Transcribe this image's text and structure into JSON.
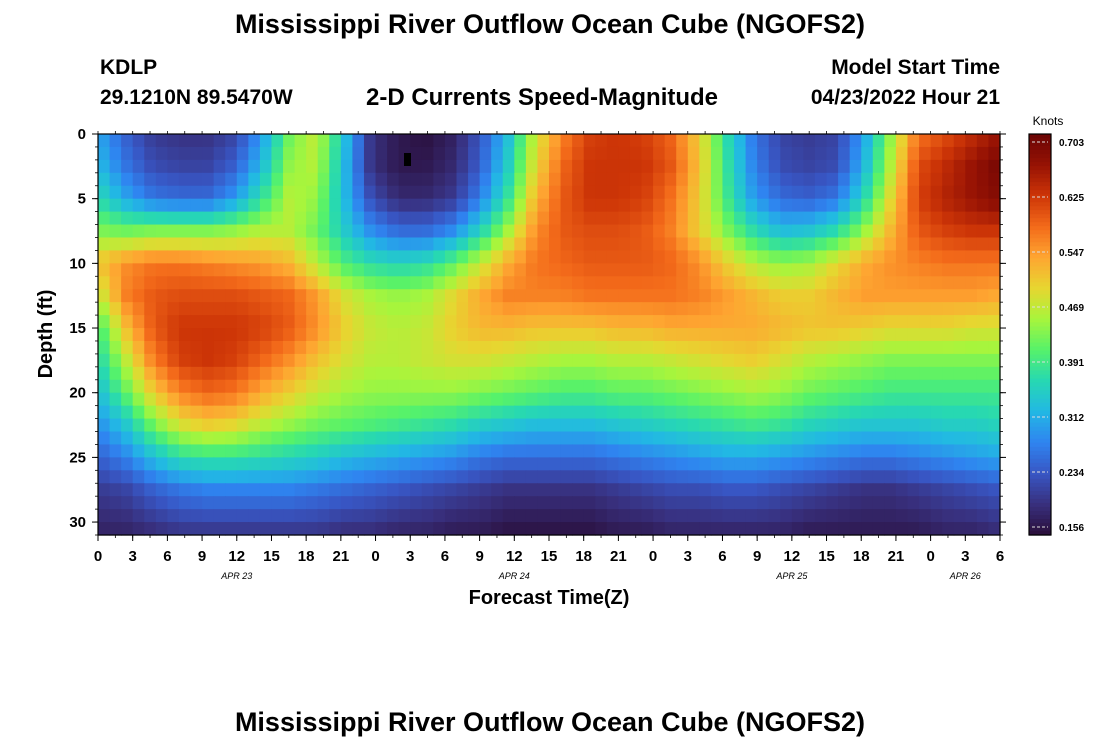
{
  "header": {
    "title": "Mississippi River Outflow Ocean Cube (NGOFS2)",
    "station": "KDLP",
    "coordinates": "29.1210N  89.5470W",
    "subtitle": "2-D Currents Speed-Magnitude",
    "start_label": "Model Start Time",
    "start_value": "04/23/2022 Hour 21"
  },
  "footer": {
    "title": "Mississippi River Outflow Ocean Cube (NGOFS2)"
  },
  "chart_data": {
    "type": "heatmap",
    "xlabel": "Forecast Time(Z)",
    "ylabel": "Depth (ft)",
    "x_range_hours": [
      0,
      78
    ],
    "x_tick_labels": [
      "0",
      "3",
      "6",
      "9",
      "12",
      "15",
      "18",
      "21",
      "0",
      "3",
      "6",
      "9",
      "12",
      "15",
      "18",
      "21",
      "0",
      "3",
      "6",
      "9",
      "12",
      "15",
      "18",
      "21",
      "0",
      "3",
      "6"
    ],
    "date_labels": [
      {
        "text": "APR 23",
        "hour": 12
      },
      {
        "text": "APR 24",
        "hour": 36
      },
      {
        "text": "APR 25",
        "hour": 60
      },
      {
        "text": "APR 26",
        "hour": 75
      }
    ],
    "ylim": [
      0,
      31
    ],
    "y_tick_labels": [
      "0",
      "5",
      "10",
      "15",
      "20",
      "25",
      "30"
    ],
    "colorbar": {
      "unit": "Knots",
      "tick_labels": [
        "0.703",
        "0.625",
        "0.547",
        "0.469",
        "0.391",
        "0.312",
        "0.234",
        "0.156"
      ],
      "min": 0.156,
      "max": 0.703
    },
    "colormap": [
      "#2a0e3a",
      "#38307e",
      "#3856c4",
      "#2f84f0",
      "#22b8e4",
      "#27d8b2",
      "#56f26a",
      "#a8f53c",
      "#e7d630",
      "#fea531",
      "#f36a1a",
      "#cd3507",
      "#961204",
      "#6a0404"
    ],
    "surface_max_hours": [
      21,
      45,
      70
    ],
    "mid_max_hours": [
      12,
      42,
      66
    ],
    "deep_max_hours": [
      9,
      33,
      58
    ],
    "values": [
      [
        0.31,
        0.25,
        0.21,
        0.2,
        0.2,
        0.22,
        0.3,
        0.42,
        0.47,
        0.34,
        0.2,
        0.17,
        0.16,
        0.18,
        0.24,
        0.33,
        0.47,
        0.56,
        0.61,
        0.62,
        0.61,
        0.58,
        0.5,
        0.37,
        0.27,
        0.22,
        0.21,
        0.22,
        0.3,
        0.44,
        0.57,
        0.6,
        0.63,
        0.66
      ],
      [
        0.33,
        0.27,
        0.23,
        0.22,
        0.22,
        0.25,
        0.33,
        0.44,
        0.46,
        0.33,
        0.2,
        0.17,
        0.17,
        0.19,
        0.25,
        0.35,
        0.49,
        0.58,
        0.62,
        0.62,
        0.62,
        0.59,
        0.51,
        0.38,
        0.28,
        0.23,
        0.22,
        0.23,
        0.32,
        0.46,
        0.6,
        0.63,
        0.66,
        0.69
      ],
      [
        0.37,
        0.31,
        0.27,
        0.26,
        0.26,
        0.3,
        0.38,
        0.46,
        0.44,
        0.33,
        0.23,
        0.19,
        0.19,
        0.21,
        0.28,
        0.38,
        0.52,
        0.59,
        0.62,
        0.62,
        0.61,
        0.57,
        0.5,
        0.39,
        0.3,
        0.26,
        0.25,
        0.27,
        0.36,
        0.49,
        0.61,
        0.64,
        0.66,
        0.68
      ],
      [
        0.43,
        0.42,
        0.43,
        0.43,
        0.43,
        0.44,
        0.46,
        0.46,
        0.42,
        0.35,
        0.29,
        0.26,
        0.26,
        0.29,
        0.36,
        0.45,
        0.55,
        0.59,
        0.6,
        0.6,
        0.59,
        0.56,
        0.5,
        0.43,
        0.37,
        0.33,
        0.34,
        0.37,
        0.44,
        0.52,
        0.59,
        0.61,
        0.62,
        0.62
      ],
      [
        0.51,
        0.55,
        0.57,
        0.57,
        0.56,
        0.55,
        0.54,
        0.52,
        0.46,
        0.4,
        0.37,
        0.36,
        0.37,
        0.41,
        0.47,
        0.53,
        0.57,
        0.58,
        0.59,
        0.59,
        0.59,
        0.58,
        0.55,
        0.5,
        0.46,
        0.44,
        0.45,
        0.49,
        0.53,
        0.55,
        0.56,
        0.57,
        0.57,
        0.57
      ],
      [
        0.46,
        0.56,
        0.59,
        0.6,
        0.6,
        0.6,
        0.59,
        0.58,
        0.54,
        0.48,
        0.45,
        0.44,
        0.45,
        0.49,
        0.53,
        0.56,
        0.56,
        0.56,
        0.57,
        0.57,
        0.57,
        0.57,
        0.56,
        0.54,
        0.52,
        0.5,
        0.5,
        0.52,
        0.54,
        0.54,
        0.54,
        0.54,
        0.54,
        0.53
      ],
      [
        0.39,
        0.51,
        0.59,
        0.62,
        0.62,
        0.62,
        0.61,
        0.59,
        0.55,
        0.5,
        0.47,
        0.46,
        0.47,
        0.5,
        0.52,
        0.52,
        0.51,
        0.51,
        0.51,
        0.52,
        0.52,
        0.53,
        0.53,
        0.53,
        0.53,
        0.52,
        0.51,
        0.51,
        0.5,
        0.49,
        0.49,
        0.49,
        0.48,
        0.48
      ],
      [
        0.36,
        0.46,
        0.56,
        0.61,
        0.62,
        0.61,
        0.58,
        0.55,
        0.51,
        0.48,
        0.46,
        0.46,
        0.47,
        0.48,
        0.48,
        0.47,
        0.46,
        0.45,
        0.45,
        0.46,
        0.46,
        0.47,
        0.48,
        0.49,
        0.5,
        0.48,
        0.46,
        0.45,
        0.44,
        0.43,
        0.43,
        0.43,
        0.43,
        0.43
      ],
      [
        0.33,
        0.41,
        0.5,
        0.56,
        0.58,
        0.57,
        0.53,
        0.5,
        0.47,
        0.45,
        0.44,
        0.44,
        0.44,
        0.44,
        0.43,
        0.42,
        0.41,
        0.4,
        0.4,
        0.41,
        0.41,
        0.42,
        0.43,
        0.44,
        0.45,
        0.44,
        0.42,
        0.41,
        0.4,
        0.39,
        0.39,
        0.39,
        0.39,
        0.39
      ],
      [
        0.29,
        0.34,
        0.42,
        0.48,
        0.5,
        0.49,
        0.46,
        0.44,
        0.42,
        0.41,
        0.4,
        0.39,
        0.38,
        0.37,
        0.35,
        0.34,
        0.33,
        0.33,
        0.33,
        0.34,
        0.35,
        0.36,
        0.37,
        0.38,
        0.39,
        0.38,
        0.36,
        0.35,
        0.34,
        0.34,
        0.34,
        0.35,
        0.35,
        0.36
      ],
      [
        0.25,
        0.28,
        0.33,
        0.37,
        0.38,
        0.38,
        0.37,
        0.36,
        0.35,
        0.33,
        0.32,
        0.31,
        0.3,
        0.29,
        0.27,
        0.26,
        0.26,
        0.26,
        0.26,
        0.27,
        0.28,
        0.29,
        0.3,
        0.31,
        0.31,
        0.3,
        0.29,
        0.28,
        0.27,
        0.27,
        0.28,
        0.29,
        0.3,
        0.31
      ],
      [
        0.21,
        0.22,
        0.25,
        0.27,
        0.28,
        0.28,
        0.28,
        0.28,
        0.27,
        0.26,
        0.25,
        0.24,
        0.23,
        0.22,
        0.21,
        0.2,
        0.2,
        0.2,
        0.2,
        0.21,
        0.22,
        0.23,
        0.23,
        0.24,
        0.24,
        0.23,
        0.22,
        0.21,
        0.2,
        0.2,
        0.21,
        0.22,
        0.23,
        0.24
      ],
      [
        0.18,
        0.18,
        0.19,
        0.2,
        0.2,
        0.2,
        0.2,
        0.2,
        0.2,
        0.19,
        0.19,
        0.18,
        0.18,
        0.17,
        0.17,
        0.16,
        0.16,
        0.16,
        0.16,
        0.17,
        0.17,
        0.18,
        0.18,
        0.18,
        0.18,
        0.18,
        0.17,
        0.17,
        0.17,
        0.17,
        0.17,
        0.18,
        0.18,
        0.19
      ]
    ],
    "value_grid_x_hours": [
      0,
      2.36,
      4.73,
      7.09,
      9.45,
      11.82,
      14.18,
      16.55,
      18.91,
      21.27,
      23.64,
      26,
      28.36,
      30.73,
      33.09,
      35.45,
      37.82,
      40.18,
      42.55,
      44.91,
      47.27,
      49.64,
      52,
      54.36,
      56.73,
      59.09,
      61.45,
      63.82,
      66.18,
      68.55,
      70.91,
      73.27,
      75.64,
      78
    ],
    "value_grid_depth_ft": [
      0,
      2.5,
      5,
      7.5,
      10,
      12.5,
      15,
      17.5,
      20,
      22.5,
      25,
      27.5,
      31
    ]
  }
}
